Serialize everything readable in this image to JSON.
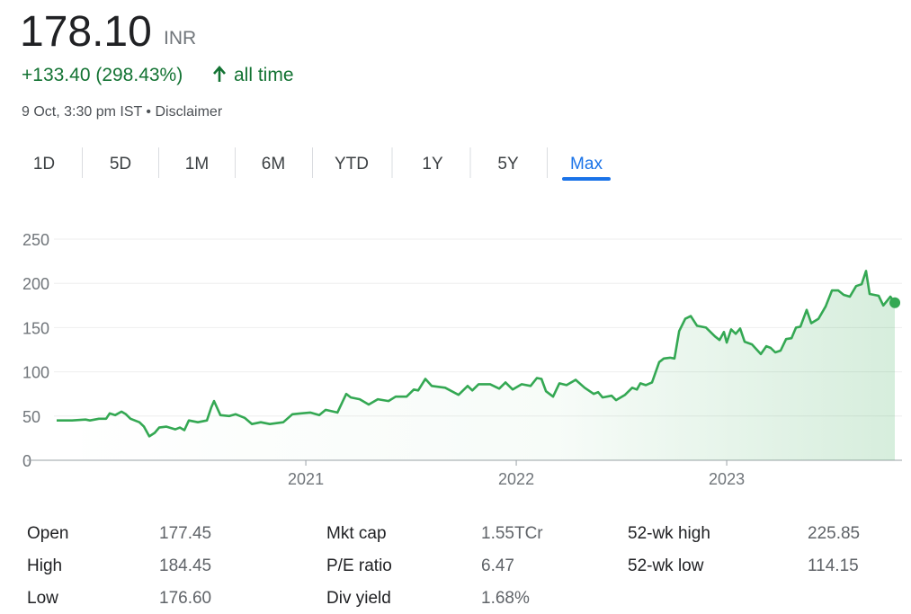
{
  "header": {
    "price": "178.10",
    "currency": "INR",
    "change": "+133.40 (298.43%)",
    "change_period": "all time",
    "timestamp": "9 Oct, 3:30 pm IST",
    "disclaimer": "Disclaimer"
  },
  "tabs": [
    "1D",
    "5D",
    "1M",
    "6M",
    "YTD",
    "1Y",
    "5Y",
    "Max"
  ],
  "selected_tab": "Max",
  "chart_data": {
    "type": "line",
    "series": [
      {
        "color": "#34a853",
        "x": [
          2019.816,
          2019.889,
          2019.953,
          2019.974,
          2020.017,
          2020.051,
          2020.068,
          2020.094,
          2020.124,
          2020.145,
          2020.167,
          2020.209,
          2020.231,
          2020.256,
          2020.282,
          2020.303,
          2020.338,
          2020.38,
          2020.402,
          2020.423,
          2020.444,
          2020.487,
          2020.53,
          2020.551,
          2020.564,
          2020.594,
          2020.637,
          2020.667,
          2020.709,
          2020.744,
          2020.786,
          2020.829,
          2020.893,
          2020.936,
          2020.979,
          2021.021,
          2021.064,
          2021.094,
          2021.15,
          2021.192,
          2021.214,
          2021.256,
          2021.299,
          2021.342,
          2021.393,
          2021.427,
          2021.479,
          2021.513,
          2021.534,
          2021.568,
          2021.598,
          2021.662,
          2021.726,
          2021.769,
          2021.791,
          2021.821,
          2021.876,
          2021.919,
          2021.949,
          2021.983,
          2022.026,
          2022.068,
          2022.098,
          2022.12,
          2022.141,
          2022.175,
          2022.205,
          2022.239,
          2022.282,
          2022.325,
          2022.368,
          2022.389,
          2022.41,
          2022.453,
          2022.474,
          2022.517,
          2022.551,
          2022.573,
          2022.59,
          2022.615,
          2022.645,
          2022.679,
          2022.701,
          2022.731,
          2022.752,
          2022.774,
          2022.803,
          2022.829,
          2022.859,
          2022.902,
          2022.944,
          2022.966,
          2022.987,
          2023.0,
          2023.021,
          2023.043,
          2023.064,
          2023.085,
          2023.12,
          2023.162,
          2023.188,
          2023.209,
          2023.231,
          2023.256,
          2023.282,
          2023.308,
          2023.329,
          2023.35,
          2023.38,
          2023.402,
          2023.436,
          2023.47,
          2023.5,
          2023.53,
          2023.556,
          2023.585,
          2023.615,
          2023.641,
          2023.662,
          2023.679,
          2023.722,
          2023.744,
          2023.778,
          2023.799
        ],
        "values": [
          45,
          45,
          46,
          45,
          47,
          47,
          53,
          51,
          55,
          52,
          47,
          43,
          38,
          27,
          31,
          37,
          38,
          35,
          37,
          34,
          45,
          43,
          45,
          60,
          67,
          51,
          50,
          52,
          48,
          41,
          43,
          41,
          43,
          52,
          53,
          54,
          51,
          57,
          54,
          75,
          71,
          69,
          63,
          69,
          67,
          72,
          72,
          80,
          79,
          92,
          84,
          82,
          74,
          84,
          79,
          86,
          86,
          81,
          88,
          80,
          86,
          84,
          93,
          92,
          78,
          72,
          87,
          85,
          91,
          82,
          75,
          77,
          71,
          73,
          68,
          74,
          82,
          80,
          87,
          85,
          88,
          111,
          115,
          116,
          115,
          146,
          160,
          163,
          152,
          150,
          140,
          136,
          145,
          133,
          148,
          143,
          149,
          134,
          131,
          120,
          129,
          127,
          122,
          124,
          137,
          138,
          150,
          151,
          170,
          155,
          160,
          174,
          192,
          192,
          187,
          185,
          197,
          199,
          214,
          188,
          186,
          175,
          185,
          178.1
        ]
      }
    ],
    "xlim": [
      2019.675,
      2023.833
    ],
    "xticks": [
      2021,
      2022,
      2023
    ],
    "ylim": [
      0,
      250
    ],
    "yticks": [
      0,
      50,
      100,
      150,
      200,
      250
    ],
    "grid": true
  },
  "stats": [
    [
      [
        "Open",
        "177.45"
      ],
      [
        "Mkt cap",
        "1.55TCr"
      ],
      [
        "52-wk high",
        "225.85"
      ]
    ],
    [
      [
        "High",
        "184.45"
      ],
      [
        "P/E ratio",
        "6.47"
      ],
      [
        "52-wk low",
        "114.15"
      ]
    ],
    [
      [
        "Low",
        "176.60"
      ],
      [
        "Div yield",
        "1.68%"
      ]
    ]
  ]
}
